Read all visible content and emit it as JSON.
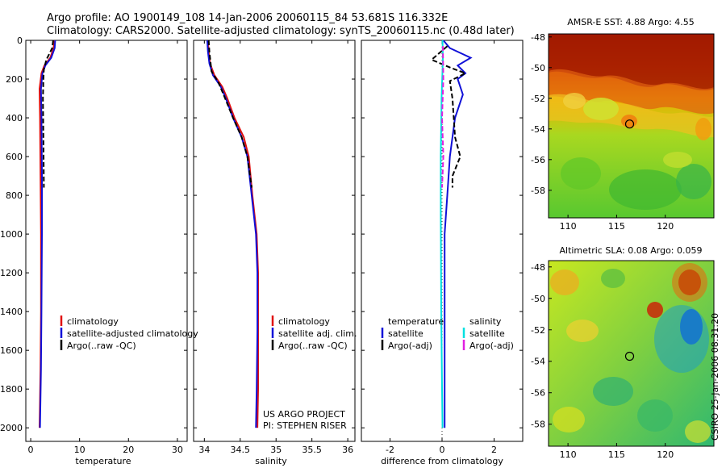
{
  "header": {
    "line1": "Argo profile: AO 1900149_108 14-Jan-2006 20060115_84 53.681S 116.332E",
    "line2": "Climatology: CARS2000. Satellite-adjusted climatology: synTS_20060115.nc (0.48d later)"
  },
  "colors": {
    "climatology": "#e01010",
    "satellite": "#1010d8",
    "argo": "#000000",
    "sat_diff": "#00e0e0",
    "argo_sal_diff": "#e020e0"
  },
  "chart_data": [
    {
      "type": "line",
      "xlabel": "temperature",
      "xticks": [
        0,
        10,
        20,
        30
      ],
      "xlim": [
        -1,
        32
      ],
      "yticks": [
        0,
        200,
        400,
        600,
        800,
        1000,
        1200,
        1400,
        1600,
        1800,
        2000
      ],
      "ylim": [
        2070,
        0
      ],
      "y_reversed": true,
      "legend": {
        "position": "center-right",
        "entries": [
          "climatology",
          "satellite-adjusted climatology",
          "Argo(..raw -QC)"
        ]
      },
      "series": [
        {
          "name": "climatology",
          "color": "#e01010",
          "points": [
            [
              4.8,
              0
            ],
            [
              4.7,
              40
            ],
            [
              4.0,
              90
            ],
            [
              2.8,
              130
            ],
            [
              2.2,
              170
            ],
            [
              1.8,
              250
            ],
            [
              1.9,
              400
            ],
            [
              2.0,
              700
            ],
            [
              2.1,
              1000
            ],
            [
              2.1,
              1400
            ],
            [
              2.0,
              1700
            ],
            [
              1.8,
              2000
            ]
          ]
        },
        {
          "name": "satellite-adjusted climatology",
          "color": "#1010d8",
          "points": [
            [
              5.0,
              0
            ],
            [
              4.9,
              40
            ],
            [
              4.2,
              90
            ],
            [
              3.0,
              130
            ],
            [
              2.4,
              170
            ],
            [
              2.1,
              250
            ],
            [
              2.2,
              400
            ],
            [
              2.3,
              700
            ],
            [
              2.3,
              1000
            ],
            [
              2.2,
              1400
            ],
            [
              2.1,
              1700
            ],
            [
              1.9,
              2000
            ]
          ]
        },
        {
          "name": "Argo(..raw -QC)",
          "color": "#000000",
          "dashed": true,
          "points": [
            [
              4.6,
              0
            ],
            [
              4.4,
              40
            ],
            [
              3.2,
              100
            ],
            [
              2.7,
              150
            ],
            [
              2.6,
              200
            ],
            [
              2.5,
              300
            ],
            [
              2.6,
              500
            ],
            [
              2.7,
              760
            ]
          ]
        }
      ]
    },
    {
      "type": "line",
      "xlabel": "salinity",
      "xticks": [
        34,
        34.5,
        35,
        35.5,
        36
      ],
      "xlim": [
        33.85,
        36.1
      ],
      "yticks": [
        0,
        200,
        400,
        600,
        800,
        1000,
        1200,
        1400,
        1600,
        1800,
        2000
      ],
      "ylim": [
        2070,
        0
      ],
      "y_reversed": true,
      "legend": {
        "position": "center-right",
        "entries": [
          "climatology",
          "satellite adj. clim.",
          "Argo(..raw -QC)"
        ]
      },
      "annotation": [
        "US ARGO PROJECT",
        "PI: STEPHEN RISER"
      ],
      "series": [
        {
          "name": "climatology",
          "color": "#e01010",
          "points": [
            [
              34.05,
              0
            ],
            [
              34.06,
              60
            ],
            [
              34.08,
              120
            ],
            [
              34.14,
              180
            ],
            [
              34.25,
              240
            ],
            [
              34.32,
              300
            ],
            [
              34.42,
              400
            ],
            [
              34.55,
              500
            ],
            [
              34.62,
              600
            ],
            [
              34.67,
              800
            ],
            [
              34.73,
              1000
            ],
            [
              34.75,
              1200
            ],
            [
              34.75,
              1500
            ],
            [
              34.75,
              1800
            ],
            [
              34.74,
              2000
            ]
          ]
        },
        {
          "name": "satellite adj. clim.",
          "color": "#1010d8",
          "points": [
            [
              34.04,
              0
            ],
            [
              34.05,
              60
            ],
            [
              34.07,
              120
            ],
            [
              34.12,
              180
            ],
            [
              34.23,
              240
            ],
            [
              34.3,
              300
            ],
            [
              34.4,
              400
            ],
            [
              34.52,
              500
            ],
            [
              34.6,
              600
            ],
            [
              34.66,
              800
            ],
            [
              34.72,
              1000
            ],
            [
              34.74,
              1200
            ],
            [
              34.74,
              1500
            ],
            [
              34.73,
              1800
            ],
            [
              34.72,
              2000
            ]
          ]
        },
        {
          "name": "Argo(..raw -QC)",
          "color": "#000000",
          "dashed": true,
          "points": [
            [
              34.06,
              0
            ],
            [
              34.07,
              60
            ],
            [
              34.1,
              160
            ],
            [
              34.2,
              220
            ],
            [
              34.29,
              300
            ],
            [
              34.4,
              400
            ],
            [
              34.52,
              500
            ],
            [
              34.6,
              600
            ],
            [
              34.66,
              760
            ]
          ]
        }
      ]
    },
    {
      "type": "line",
      "xlabel": "difference from climatology",
      "xticks": [
        -2,
        0,
        2
      ],
      "xlim": [
        -3.1,
        3.1
      ],
      "yticks": [
        0,
        200,
        400,
        600,
        800,
        1000,
        1200,
        1400,
        1600,
        1800,
        2000
      ],
      "ylim": [
        2070,
        0
      ],
      "y_reversed": true,
      "legend": {
        "position": "center",
        "temperature_title": "temperature",
        "salinity_title": "salinity",
        "temperature_entries": [
          "satellite",
          "Argo(-adj)"
        ],
        "salinity_entries": [
          "satellite",
          "Argo(-adj)"
        ]
      },
      "series": [
        {
          "name": "temperature satellite",
          "color": "#1010d8",
          "points": [
            [
              0.05,
              0
            ],
            [
              0.3,
              40
            ],
            [
              1.1,
              90
            ],
            [
              0.6,
              130
            ],
            [
              0.9,
              170
            ],
            [
              0.6,
              200
            ],
            [
              0.8,
              280
            ],
            [
              0.5,
              400
            ],
            [
              0.3,
              600
            ],
            [
              0.2,
              800
            ],
            [
              0.1,
              1000
            ],
            [
              0.1,
              1400
            ],
            [
              0.1,
              1800
            ],
            [
              0.1,
              2000
            ]
          ]
        },
        {
          "name": "temperature Argo(-adj)",
          "color": "#000000",
          "dashed": true,
          "points": [
            [
              0.2,
              30
            ],
            [
              -0.4,
              100
            ],
            [
              0.3,
              140
            ],
            [
              0.9,
              170
            ],
            [
              0.3,
              210
            ],
            [
              0.4,
              300
            ],
            [
              0.5,
              500
            ],
            [
              0.7,
              600
            ],
            [
              0.4,
              700
            ],
            [
              0.4,
              760
            ]
          ]
        },
        {
          "name": "salinity satellite",
          "color": "#00e0e0",
          "points": [
            [
              0.02,
              0
            ],
            [
              0.03,
              100
            ],
            [
              -0.02,
              300
            ],
            [
              -0.05,
              600
            ],
            [
              -0.05,
              900
            ],
            [
              -0.03,
              1400
            ],
            [
              0.0,
              1800
            ],
            [
              0.02,
              2000
            ]
          ]
        },
        {
          "name": "salinity Argo(-adj)",
          "color": "#e020e0",
          "dashed": true,
          "points": [
            [
              0.03,
              30
            ],
            [
              0.05,
              200
            ],
            [
              0.0,
              400
            ],
            [
              0.05,
              600
            ],
            [
              0.0,
              760
            ]
          ]
        }
      ]
    }
  ],
  "maps": [
    {
      "title": "AMSR-E SST: 4.88 Argo: 4.55",
      "xticks": [
        110,
        115,
        120
      ],
      "yticks": [
        -48,
        -50,
        -52,
        -54,
        -56,
        -58
      ],
      "xlim": [
        108,
        125
      ],
      "ylim": [
        -59.8,
        -47.8
      ],
      "marker": {
        "lon": 116.332,
        "lat": -53.681
      }
    },
    {
      "title": "Altimetric SLA: 0.08 Argo: 0.059",
      "xticks": [
        110,
        115,
        120
      ],
      "yticks": [
        -48,
        -50,
        -52,
        -54,
        -56,
        -58
      ],
      "xlim": [
        108,
        125
      ],
      "ylim": [
        -59.4,
        -47.6
      ],
      "marker": {
        "lon": 116.332,
        "lat": -53.681
      }
    }
  ],
  "stamp": "CSIRO 25-Jan-2006 08:31:20"
}
